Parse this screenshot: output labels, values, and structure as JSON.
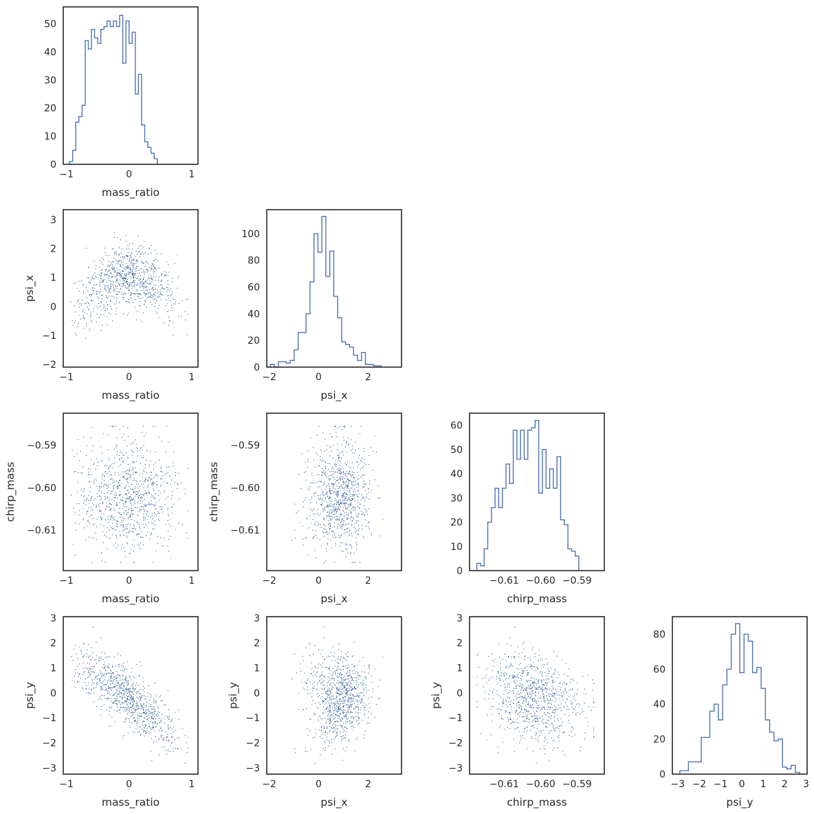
{
  "chart_data": {
    "type": "pairplot",
    "variables": [
      "mass_ratio",
      "psi_x",
      "chirp_mass",
      "psi_y"
    ],
    "axis_labels": {
      "mass_ratio": "mass_ratio",
      "psi_x": "psi_x",
      "chirp_mass": "chirp_mass",
      "psi_y": "psi_y"
    },
    "ranges": {
      "mass_ratio": [
        -1.05,
        1.1
      ],
      "psi_x": [
        -2.1,
        3.35
      ],
      "chirp_mass": [
        -0.6195,
        -0.5825
      ],
      "psi_y": [
        -3.25,
        3.05
      ]
    },
    "ticks": {
      "mass_ratio": [
        {
          "v": -1,
          "label": "−1"
        },
        {
          "v": 0,
          "label": "0"
        },
        {
          "v": 1,
          "label": "1"
        }
      ],
      "psi_x": [
        {
          "v": -2,
          "label": "−2"
        },
        {
          "v": 0,
          "label": "0"
        },
        {
          "v": 2,
          "label": "2"
        }
      ],
      "chirp_mass": [
        {
          "v": -0.61,
          "label": "−0.61"
        },
        {
          "v": -0.6,
          "label": "−0.60"
        },
        {
          "v": -0.59,
          "label": "−0.59"
        }
      ],
      "psi_y": [
        {
          "v": -3,
          "label": "−3"
        },
        {
          "v": -2,
          "label": "−2"
        },
        {
          "v": -1,
          "label": "−1"
        },
        {
          "v": 0,
          "label": "0"
        },
        {
          "v": 1,
          "label": "1"
        },
        {
          "v": 2,
          "label": "2"
        },
        {
          "v": 3,
          "label": "3"
        }
      ]
    },
    "y_ticks_override": {
      "psi_x": [
        {
          "v": -2,
          "label": "−2"
        },
        {
          "v": -1,
          "label": "−1"
        },
        {
          "v": 0,
          "label": "0"
        },
        {
          "v": 1,
          "label": "1"
        },
        {
          "v": 2,
          "label": "2"
        },
        {
          "v": 3,
          "label": "3"
        }
      ]
    },
    "histograms": [
      {
        "variable": "mass_ratio",
        "bin_start": -0.95,
        "bin_width": 0.05,
        "counts": [
          1,
          5,
          15,
          17,
          21,
          44,
          41,
          48,
          45,
          43,
          48,
          49,
          51,
          49,
          51,
          49,
          53,
          36,
          51,
          43,
          47,
          25,
          32,
          14,
          8,
          6,
          4,
          2
        ],
        "ylim": [
          0,
          56
        ],
        "yticks": [
          {
            "v": 0,
            "label": "0"
          },
          {
            "v": 10,
            "label": "10"
          },
          {
            "v": 20,
            "label": "20"
          },
          {
            "v": 30,
            "label": "30"
          },
          {
            "v": 40,
            "label": "40"
          },
          {
            "v": 50,
            "label": "50"
          }
        ]
      },
      {
        "variable": "psi_x",
        "bin_start": -1.95,
        "bin_width": 0.16,
        "counts": [
          2,
          0,
          4,
          4,
          3,
          5,
          13,
          26,
          26,
          40,
          64,
          100,
          86,
          113,
          68,
          87,
          53,
          37,
          19,
          17,
          15,
          9,
          5,
          11,
          2,
          2,
          1,
          1
        ],
        "ylim": [
          0,
          118
        ],
        "yticks": [
          {
            "v": 0,
            "label": "0"
          },
          {
            "v": 20,
            "label": "20"
          },
          {
            "v": 40,
            "label": "40"
          },
          {
            "v": 60,
            "label": "60"
          },
          {
            "v": 80,
            "label": "80"
          },
          {
            "v": 100,
            "label": "100"
          }
        ]
      },
      {
        "variable": "chirp_mass",
        "bin_start": -0.6175,
        "bin_width": 0.001,
        "counts": [
          3,
          2,
          9,
          20,
          26,
          34,
          26,
          34,
          44,
          36,
          58,
          46,
          58,
          46,
          58,
          59,
          62,
          32,
          50,
          34,
          42,
          34,
          47,
          21,
          19,
          9,
          8,
          6
        ],
        "ylim": [
          0,
          65
        ],
        "yticks": [
          {
            "v": 0,
            "label": "0"
          },
          {
            "v": 10,
            "label": "10"
          },
          {
            "v": 20,
            "label": "20"
          },
          {
            "v": 30,
            "label": "30"
          },
          {
            "v": 40,
            "label": "40"
          },
          {
            "v": 50,
            "label": "50"
          },
          {
            "v": 60,
            "label": "60"
          }
        ]
      },
      {
        "variable": "psi_y",
        "bin_start": -2.9,
        "bin_width": 0.2,
        "counts": [
          2,
          2,
          7,
          7,
          7,
          21,
          21,
          36,
          40,
          31,
          51,
          60,
          80,
          86,
          58,
          80,
          76,
          58,
          61,
          49,
          31,
          24,
          19,
          20,
          4,
          3,
          5,
          1
        ],
        "ylim": [
          0,
          90
        ],
        "yticks": [
          {
            "v": 0,
            "label": "0"
          },
          {
            "v": 20,
            "label": "20"
          },
          {
            "v": 40,
            "label": "40"
          },
          {
            "v": 60,
            "label": "60"
          },
          {
            "v": 80,
            "label": "80"
          }
        ]
      }
    ],
    "scatter_panels": [
      {
        "x": "mass_ratio",
        "y": "psi_x",
        "n_points": 900,
        "relation": "psi_x ≈ 1 − 1.6·mass_ratio² (arched)"
      },
      {
        "x": "mass_ratio",
        "y": "chirp_mass",
        "n_points": 900,
        "relation": "uncorrelated"
      },
      {
        "x": "psi_x",
        "y": "chirp_mass",
        "n_points": 900,
        "relation": "uncorrelated"
      },
      {
        "x": "mass_ratio",
        "y": "psi_y",
        "n_points": 900,
        "relation": "strong negative (slope ≈ −2)"
      },
      {
        "x": "psi_x",
        "y": "psi_y",
        "n_points": 900,
        "relation": "weak positive"
      },
      {
        "x": "chirp_mass",
        "y": "psi_y",
        "n_points": 900,
        "relation": "moderate negative"
      }
    ],
    "colors": {
      "hist": "#4c72b0",
      "points": "#1f4f8c",
      "frame": "#262626"
    },
    "grid": false
  }
}
